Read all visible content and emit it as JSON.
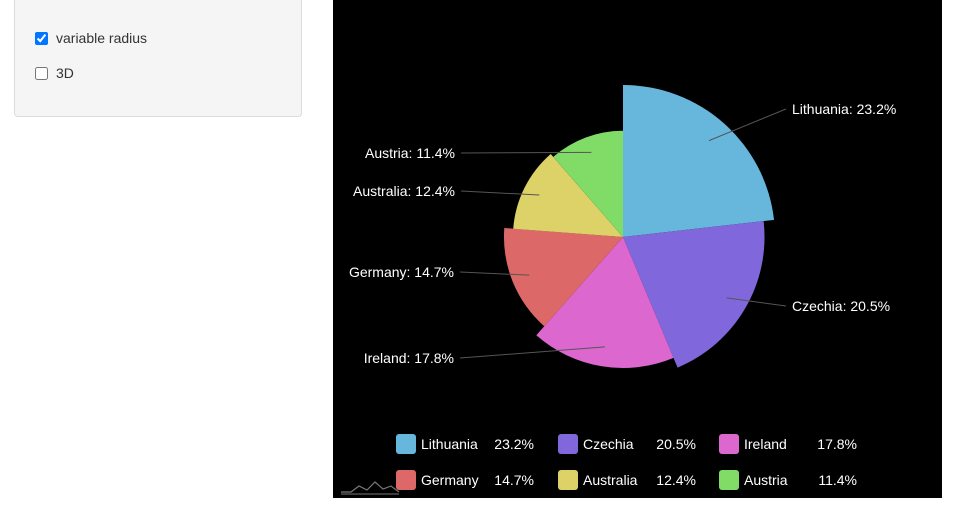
{
  "controls": {
    "variable_radius": {
      "label": "variable radius",
      "checked": true
    },
    "three_d": {
      "label": "3D",
      "checked": false
    }
  },
  "chart_data": {
    "type": "pie",
    "variant": "variable-radius",
    "categories": [
      "Lithuania",
      "Czechia",
      "Ireland",
      "Germany",
      "Australia",
      "Austria"
    ],
    "values": [
      23.2,
      20.5,
      17.8,
      14.7,
      12.4,
      11.4
    ],
    "unit": "%",
    "slice_labels": [
      "Lithuania: 23.2%",
      "Czechia: 20.5%",
      "Ireland: 17.8%",
      "Germany: 14.7%",
      "Australia: 12.4%",
      "Austria: 11.4%"
    ],
    "legend_values": [
      "23.2%",
      "20.5%",
      "17.8%",
      "14.7%",
      "12.4%",
      "11.4%"
    ],
    "colors": [
      "#67b7dc",
      "#8067dc",
      "#dc67ce",
      "#dc6967",
      "#dcd267",
      "#80dc67"
    ],
    "legend_placement": "bottom",
    "background": "#000000"
  }
}
